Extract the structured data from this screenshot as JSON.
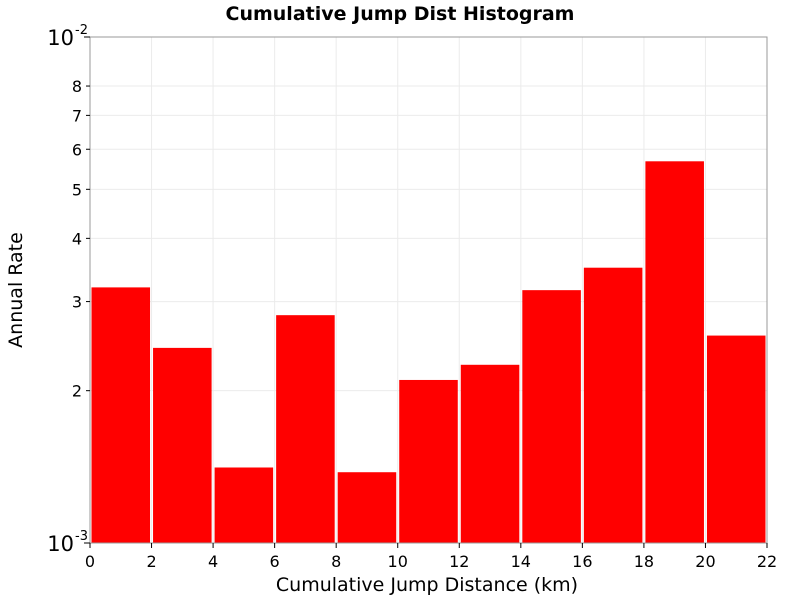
{
  "chart_data": {
    "type": "bar",
    "title": "Cumulative Jump Dist Histogram",
    "xlabel": "Cumulative Jump Distance (km)",
    "ylabel": "Annual Rate",
    "y_scale": "log",
    "xlim": [
      0,
      22
    ],
    "ylim": [
      0.001,
      0.01
    ],
    "x_ticks": [
      "0",
      "2",
      "4",
      "6",
      "8",
      "10",
      "12",
      "14",
      "16",
      "18",
      "20",
      "22"
    ],
    "y_minor_ticks": [
      {
        "value": 0.002,
        "label": "2"
      },
      {
        "value": 0.003,
        "label": "3"
      },
      {
        "value": 0.004,
        "label": "4"
      },
      {
        "value": 0.005,
        "label": "5"
      },
      {
        "value": 0.006,
        "label": "6"
      },
      {
        "value": 0.007,
        "label": "7"
      },
      {
        "value": 0.008,
        "label": "8"
      }
    ],
    "y_major_ticks": [
      {
        "value": 0.001,
        "base": "10",
        "exponent": "-3"
      },
      {
        "value": 0.01,
        "base": "10",
        "exponent": "-2"
      }
    ],
    "bars": [
      {
        "x0": 0,
        "x1": 2,
        "value": 0.0032
      },
      {
        "x0": 2,
        "x1": 4,
        "value": 0.00243
      },
      {
        "x0": 4,
        "x1": 6,
        "value": 0.00141
      },
      {
        "x0": 6,
        "x1": 8,
        "value": 0.00282
      },
      {
        "x0": 8,
        "x1": 10,
        "value": 0.00138
      },
      {
        "x0": 10,
        "x1": 12,
        "value": 0.0021
      },
      {
        "x0": 12,
        "x1": 14,
        "value": 0.00225
      },
      {
        "x0": 14,
        "x1": 16,
        "value": 0.00316
      },
      {
        "x0": 16,
        "x1": 18,
        "value": 0.0035
      },
      {
        "x0": 18,
        "x1": 20,
        "value": 0.00568
      },
      {
        "x0": 20,
        "x1": 22,
        "value": 0.00257
      }
    ],
    "bar_color": "#ff0000",
    "grid": true
  }
}
